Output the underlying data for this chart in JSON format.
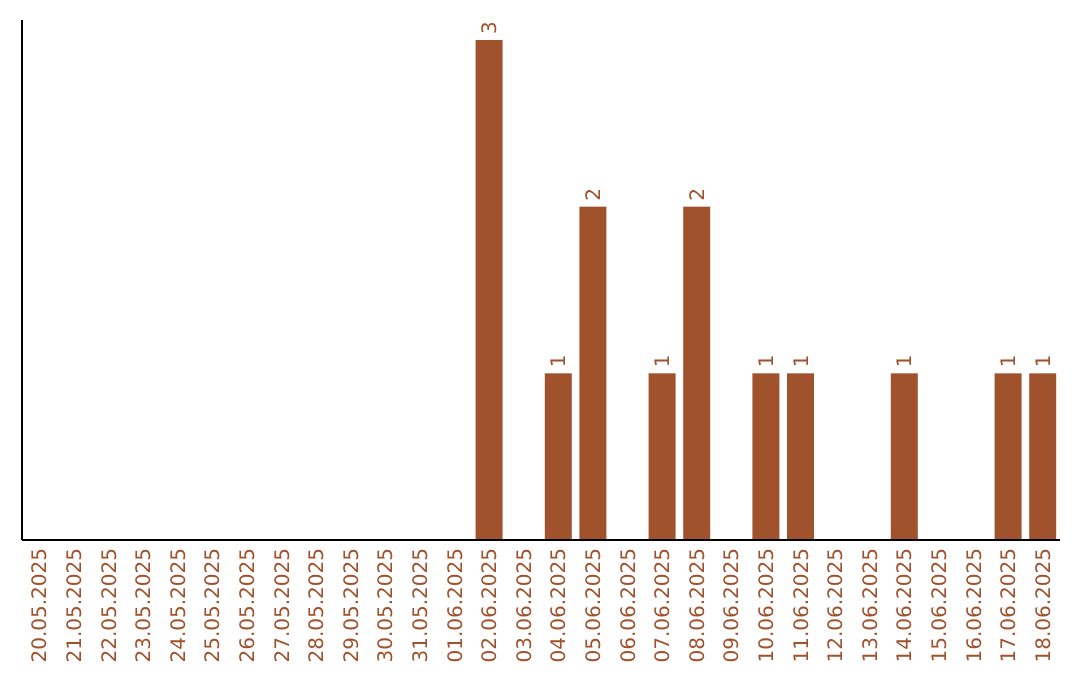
{
  "chart_data": {
    "type": "bar",
    "categories": [
      "20.05.2025",
      "21.05.2025",
      "22.05.2025",
      "23.05.2025",
      "24.05.2025",
      "25.05.2025",
      "26.05.2025",
      "27.05.2025",
      "28.05.2025",
      "29.05.2025",
      "30.05.2025",
      "31.05.2025",
      "01.06.2025",
      "02.06.2025",
      "03.06.2025",
      "04.06.2025",
      "05.06.2025",
      "06.06.2025",
      "07.06.2025",
      "08.06.2025",
      "09.06.2025",
      "10.06.2025",
      "11.06.2025",
      "12.06.2025",
      "13.06.2025",
      "14.06.2025",
      "15.06.2025",
      "16.06.2025",
      "17.06.2025",
      "18.06.2025"
    ],
    "values": [
      null,
      null,
      null,
      null,
      null,
      null,
      null,
      null,
      null,
      null,
      null,
      null,
      null,
      3,
      null,
      1,
      2,
      null,
      1,
      2,
      null,
      1,
      1,
      null,
      null,
      1,
      null,
      null,
      1,
      1
    ],
    "data_labels": true,
    "color": "#a0522d",
    "ylim": [
      0,
      3.12
    ],
    "tick_labels": "x"
  }
}
